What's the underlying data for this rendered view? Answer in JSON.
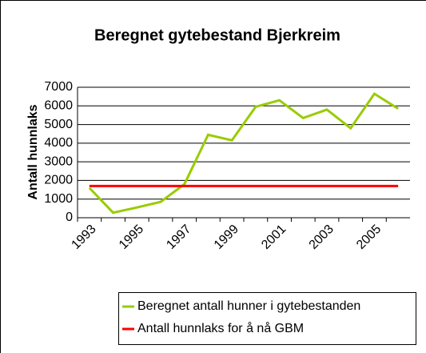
{
  "chart_data": {
    "type": "line",
    "title": "Beregnet gytebestand Bjerkreim",
    "y_label": "Antall hunnlaks",
    "categories": [
      "1993",
      null,
      "1995",
      null,
      "1997",
      null,
      "1999",
      null,
      "2001",
      null,
      "2003",
      null,
      "2005",
      null
    ],
    "series": [
      {
        "name": "Beregnet antall hunner i gytebestanden",
        "color": "#99cc00",
        "values": [
          1600,
          270,
          550,
          850,
          1800,
          4450,
          4150,
          5950,
          6300,
          5350,
          5800,
          4800,
          6650,
          5850
        ]
      },
      {
        "name": "Antall hunnlaks for å nå GBM",
        "color": "#ff0000",
        "values": [
          1700,
          1700,
          1700,
          1700,
          1700,
          1700,
          1700,
          1700,
          1700,
          1700,
          1700,
          1700,
          1700,
          1700
        ]
      }
    ],
    "ylim": [
      0,
      7000
    ],
    "yticks": [
      0,
      1000,
      2000,
      3000,
      4000,
      5000,
      6000,
      7000
    ],
    "grid": true
  }
}
